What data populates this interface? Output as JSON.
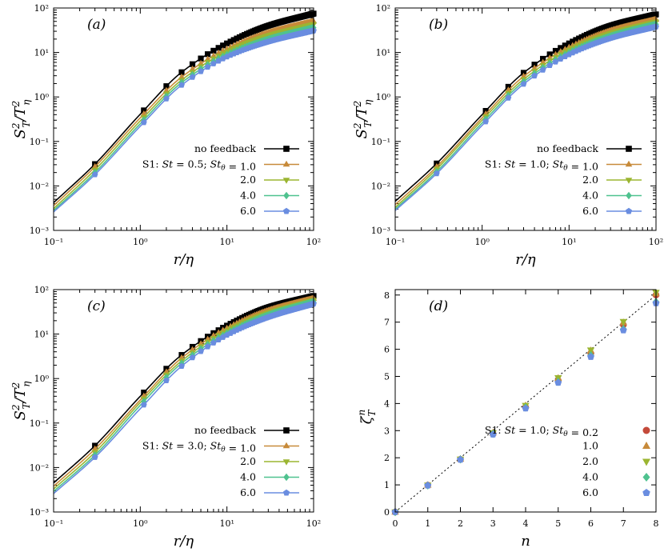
{
  "colors": {
    "no_feedback": "#000000",
    "st1": "#c78a3a",
    "st2": "#9bb531",
    "st4": "#4fc28f",
    "st6": "#6a8de0",
    "st02_red": "#c44a3a"
  },
  "chart_data": [
    {
      "id": "a",
      "type": "line",
      "panel_label": "(a)",
      "xlabel": "r/η",
      "ylabel": "S_T^2/T_η^2",
      "xscale": "log",
      "yscale": "log",
      "xlim": [
        0.1,
        100
      ],
      "ylim": [
        0.001,
        100
      ],
      "x_ticks": [
        "10⁻¹",
        "10⁰",
        "10¹",
        "10²"
      ],
      "y_ticks": [
        "10⁻³",
        "10⁻²",
        "10⁻¹",
        "10⁰",
        "10¹",
        "10²"
      ],
      "legend": {
        "placement": "bottom-right",
        "entries": [
          "no feedback",
          "S1:  St = 0.5; Stθ = 1.0",
          "2.0",
          "4.0",
          "6.0"
        ]
      },
      "series": [
        {
          "name": "no feedback",
          "color": "no_feedback",
          "marker": "square",
          "x": [
            0.1,
            0.3,
            1.0,
            3.0,
            10,
            30,
            100
          ],
          "y": [
            0.0042,
            0.031,
            0.41,
            3.6,
            16,
            40,
            75
          ]
        },
        {
          "name": "St_θ = 1.0",
          "color": "st1",
          "marker": "triangle-up",
          "x": [
            0.1,
            0.3,
            1.0,
            3.0,
            10,
            30,
            100
          ],
          "y": [
            0.0036,
            0.027,
            0.34,
            2.8,
            12,
            28,
            50
          ]
        },
        {
          "name": "St_θ = 2.0",
          "color": "st2",
          "marker": "triangle-down",
          "x": [
            0.1,
            0.3,
            1.0,
            3.0,
            10,
            30,
            100
          ],
          "y": [
            0.0031,
            0.023,
            0.29,
            2.4,
            10.5,
            24,
            43
          ]
        },
        {
          "name": "St_θ = 4.0",
          "color": "st4",
          "marker": "diamond",
          "x": [
            0.1,
            0.3,
            1.0,
            3.0,
            10,
            30,
            100
          ],
          "y": [
            0.0028,
            0.02,
            0.25,
            2.1,
            9,
            20,
            36
          ]
        },
        {
          "name": "St_θ = 6.0",
          "color": "st6",
          "marker": "pentagon",
          "x": [
            0.1,
            0.3,
            1.0,
            3.0,
            10,
            30,
            100
          ],
          "y": [
            0.0026,
            0.018,
            0.22,
            1.85,
            8,
            17.5,
            31
          ]
        }
      ]
    },
    {
      "id": "b",
      "type": "line",
      "panel_label": "(b)",
      "xlabel": "r/η",
      "ylabel": "S_T^2/T_η^2",
      "xscale": "log",
      "yscale": "log",
      "xlim": [
        0.1,
        100
      ],
      "ylim": [
        0.001,
        100
      ],
      "x_ticks": [
        "10⁻¹",
        "10⁰",
        "10¹",
        "10²"
      ],
      "y_ticks": [
        "10⁻³",
        "10⁻²",
        "10⁻¹",
        "10⁰",
        "10¹",
        "10²"
      ],
      "legend": {
        "placement": "bottom-right",
        "entries": [
          "no feedback",
          "S1:  St = 1.0; Stθ = 1.0",
          "2.0",
          "4.0",
          "6.0"
        ]
      },
      "series": [
        {
          "name": "no feedback",
          "color": "no_feedback",
          "marker": "square",
          "x": [
            0.1,
            0.3,
            1.0,
            3.0,
            10,
            30,
            100
          ],
          "y": [
            0.0045,
            0.032,
            0.4,
            3.5,
            16,
            40,
            72
          ]
        },
        {
          "name": "St_θ = 1.0",
          "color": "st1",
          "marker": "triangle-up",
          "x": [
            0.1,
            0.3,
            1.0,
            3.0,
            10,
            30,
            100
          ],
          "y": [
            0.0038,
            0.027,
            0.34,
            2.9,
            13,
            31,
            55
          ]
        },
        {
          "name": "St_θ = 2.0",
          "color": "st2",
          "marker": "triangle-down",
          "x": [
            0.1,
            0.3,
            1.0,
            3.0,
            10,
            30,
            100
          ],
          "y": [
            0.0033,
            0.024,
            0.3,
            2.5,
            11.5,
            27,
            49
          ]
        },
        {
          "name": "St_θ = 4.0",
          "color": "st4",
          "marker": "diamond",
          "x": [
            0.1,
            0.3,
            1.0,
            3.0,
            10,
            30,
            100
          ],
          "y": [
            0.003,
            0.021,
            0.26,
            2.2,
            10,
            23.5,
            43
          ]
        },
        {
          "name": "St_θ = 6.0",
          "color": "st6",
          "marker": "pentagon",
          "x": [
            0.1,
            0.3,
            1.0,
            3.0,
            10,
            30,
            100
          ],
          "y": [
            0.0028,
            0.019,
            0.23,
            1.95,
            9,
            21,
            38
          ]
        }
      ]
    },
    {
      "id": "c",
      "type": "line",
      "panel_label": "(c)",
      "xlabel": "r/η",
      "ylabel": "S_T^2/T_η^2",
      "xscale": "log",
      "yscale": "log",
      "xlim": [
        0.1,
        100
      ],
      "ylim": [
        0.001,
        100
      ],
      "x_ticks": [
        "10⁻¹",
        "10⁰",
        "10¹",
        "10²"
      ],
      "y_ticks": [
        "10⁻³",
        "10⁻²",
        "10⁻¹",
        "10⁰",
        "10¹",
        "10²"
      ],
      "legend": {
        "placement": "bottom-right",
        "entries": [
          "no feedback",
          "S1:  St = 3.0; Stθ = 1.0",
          "2.0",
          "4.0",
          "6.0"
        ]
      },
      "series": [
        {
          "name": "no feedback",
          "color": "no_feedback",
          "marker": "square",
          "x": [
            0.1,
            0.3,
            1.0,
            3.0,
            10,
            30,
            100
          ],
          "y": [
            0.0045,
            0.031,
            0.4,
            3.4,
            15.5,
            40,
            72
          ]
        },
        {
          "name": "St_θ = 1.0",
          "color": "st1",
          "marker": "triangle-up",
          "x": [
            0.1,
            0.3,
            1.0,
            3.0,
            10,
            30,
            100
          ],
          "y": [
            0.0038,
            0.026,
            0.33,
            2.9,
            13.5,
            34,
            63
          ]
        },
        {
          "name": "St_θ = 2.0",
          "color": "st2",
          "marker": "triangle-down",
          "x": [
            0.1,
            0.3,
            1.0,
            3.0,
            10,
            30,
            100
          ],
          "y": [
            0.0033,
            0.022,
            0.29,
            2.5,
            12,
            30,
            58
          ]
        },
        {
          "name": "St_θ = 4.0",
          "color": "st4",
          "marker": "diamond",
          "x": [
            0.1,
            0.3,
            1.0,
            3.0,
            10,
            30,
            100
          ],
          "y": [
            0.0029,
            0.019,
            0.25,
            2.2,
            10.5,
            27,
            53
          ]
        },
        {
          "name": "St_θ = 6.0",
          "color": "st6",
          "marker": "pentagon",
          "x": [
            0.1,
            0.3,
            1.0,
            3.0,
            10,
            30,
            100
          ],
          "y": [
            0.0026,
            0.017,
            0.21,
            1.9,
            9.5,
            24,
            48
          ]
        }
      ]
    },
    {
      "id": "d",
      "type": "scatter",
      "panel_label": "(d)",
      "xlabel": "n",
      "ylabel": "ζ_T^n",
      "xlim": [
        0,
        8
      ],
      "ylim": [
        0,
        8.2
      ],
      "x_ticks": [
        "0",
        "1",
        "2",
        "3",
        "4",
        "5",
        "6",
        "7",
        "8"
      ],
      "y_ticks": [
        "0",
        "1",
        "2",
        "3",
        "4",
        "5",
        "6",
        "7",
        "8"
      ],
      "reference_line": "y = x (dotted)",
      "legend": {
        "placement": "bottom-right",
        "entries": [
          "S1:  St = 1.0; Stθ = 0.2",
          "1.0",
          "2.0",
          "4.0",
          "6.0"
        ]
      },
      "series": [
        {
          "name": "St_θ = 0.2",
          "color": "st02_red",
          "marker": "circle",
          "x": [
            0,
            1,
            2,
            3,
            4,
            5,
            6,
            7,
            8
          ],
          "y": [
            0,
            0.99,
            1.94,
            2.88,
            3.86,
            4.85,
            5.85,
            6.9,
            8.0
          ]
        },
        {
          "name": "St_θ = 1.0",
          "color": "st1",
          "marker": "triangle-up",
          "x": [
            0,
            1,
            2,
            3,
            4,
            5,
            6,
            7,
            8
          ],
          "y": [
            0,
            0.99,
            1.95,
            2.92,
            3.92,
            4.93,
            5.95,
            6.98,
            8.05
          ]
        },
        {
          "name": "St_θ = 2.0",
          "color": "st2",
          "marker": "triangle-down",
          "x": [
            0,
            1,
            2,
            3,
            4,
            5,
            6,
            7,
            8
          ],
          "y": [
            0,
            0.99,
            1.95,
            2.92,
            3.93,
            4.95,
            5.97,
            7.02,
            8.1
          ]
        },
        {
          "name": "St_θ = 4.0",
          "color": "st4",
          "marker": "diamond",
          "x": [
            0,
            1,
            2,
            3,
            4,
            5,
            6,
            7,
            8
          ],
          "y": [
            0,
            0.98,
            1.94,
            2.88,
            3.85,
            4.8,
            5.78,
            6.75,
            7.75
          ]
        },
        {
          "name": "St_θ = 6.0",
          "color": "st6",
          "marker": "pentagon",
          "x": [
            0,
            1,
            2,
            3,
            4,
            5,
            6,
            7,
            8
          ],
          "y": [
            0,
            0.98,
            1.93,
            2.86,
            3.82,
            4.77,
            5.72,
            6.7,
            7.7
          ]
        }
      ]
    }
  ]
}
